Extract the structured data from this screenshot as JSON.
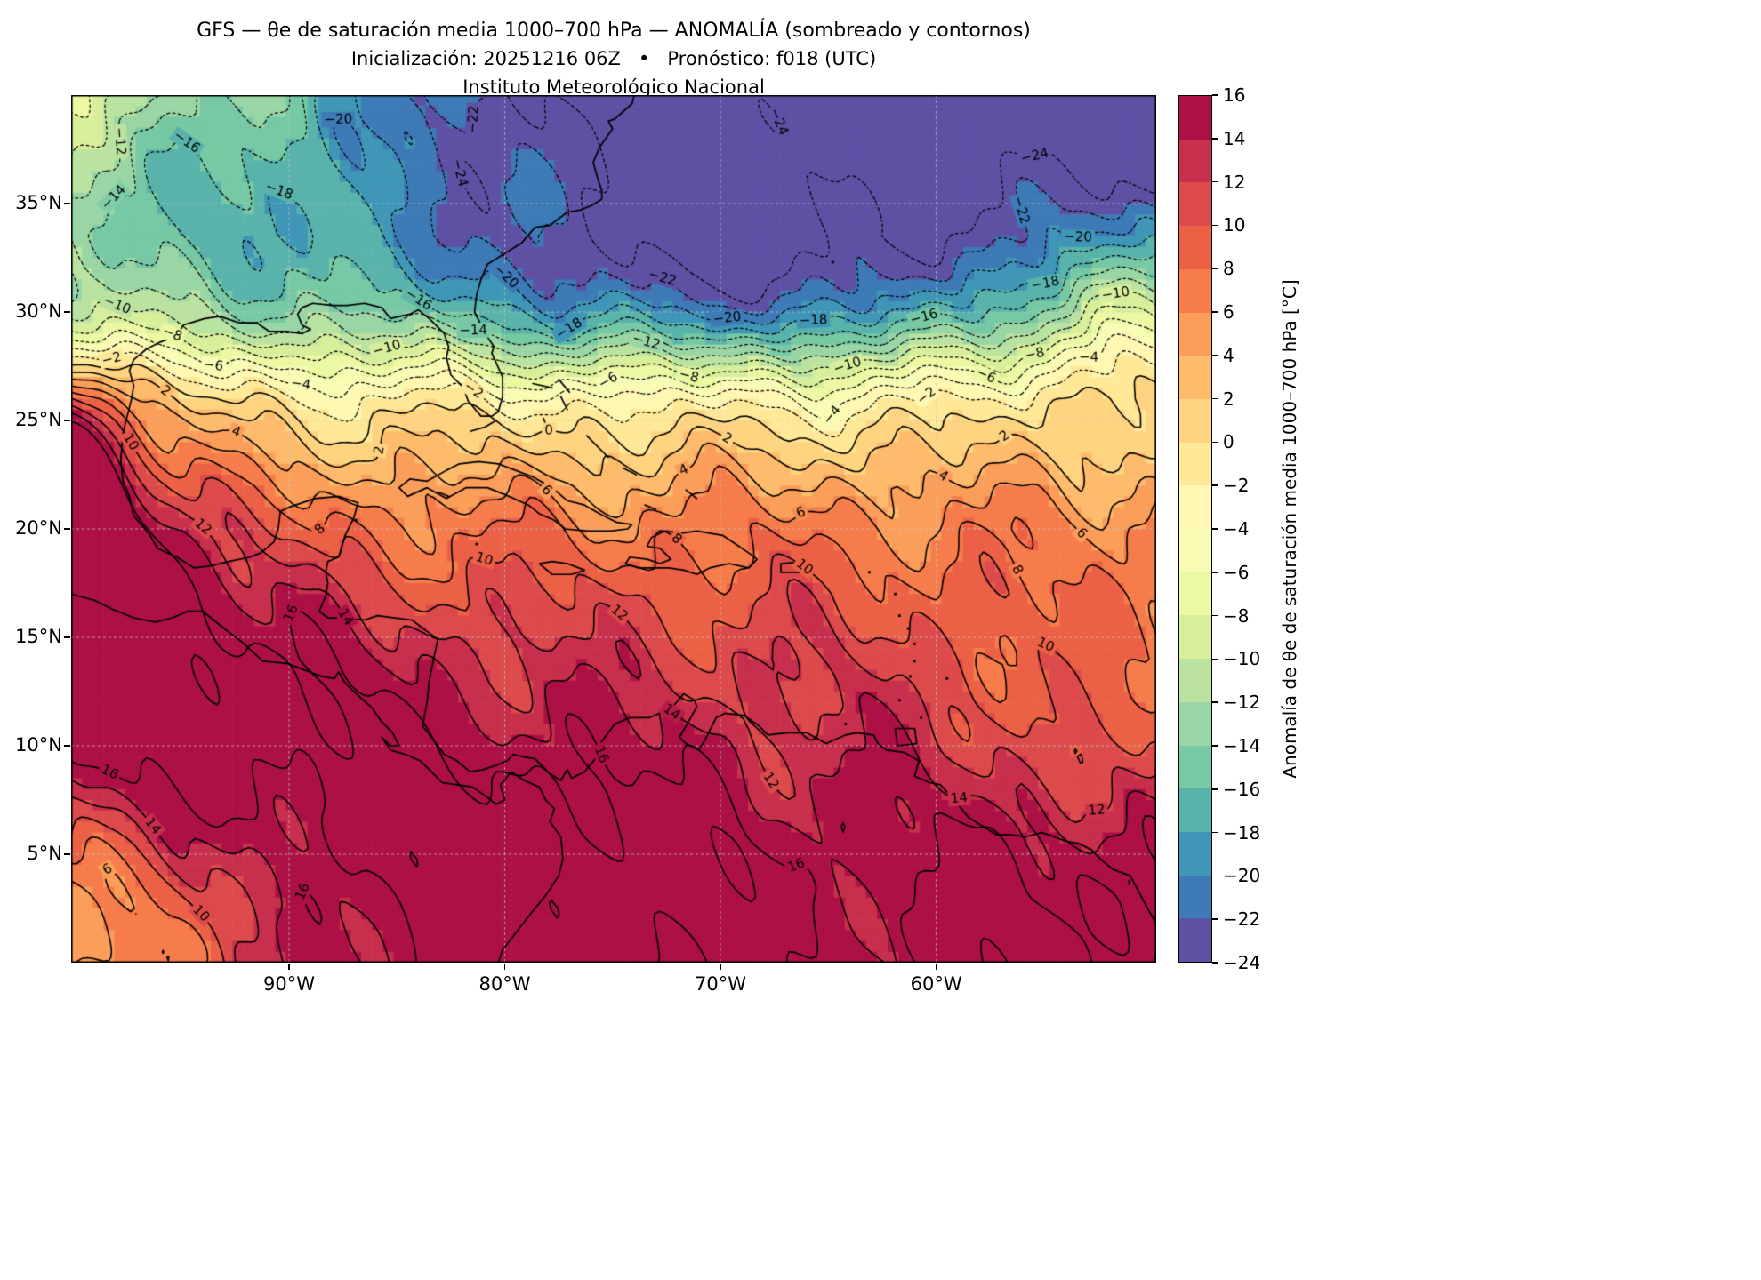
{
  "header": {
    "title": "GFS — θe de saturación media 1000–700 hPa — ANOMALÍA (sombreado y contornos)",
    "subtitle": "Inicialización: 20251216 06Z   •   Pronóstico: f018 (UTC)",
    "institution": "Instituto Meteorológico Nacional"
  },
  "axes": {
    "x_ticks": [
      {
        "lon": -90,
        "label": "90°W"
      },
      {
        "lon": -80,
        "label": "80°W"
      },
      {
        "lon": -70,
        "label": "70°W"
      },
      {
        "lon": -60,
        "label": "60°W"
      }
    ],
    "y_ticks": [
      {
        "lat": 35,
        "label": "35°N"
      },
      {
        "lat": 30,
        "label": "30°N"
      },
      {
        "lat": 25,
        "label": "25°N"
      },
      {
        "lat": 20,
        "label": "20°N"
      },
      {
        "lat": 15,
        "label": "15°N"
      },
      {
        "lat": 10,
        "label": "10°N"
      },
      {
        "lat": 5,
        "label": "5°N"
      }
    ]
  },
  "colorbar": {
    "label": "Anomalía de θe de saturación media 1000–700 hPa [°C]",
    "min": -24,
    "max": 16,
    "step": 2,
    "tick_values": [
      16,
      14,
      12,
      10,
      8,
      6,
      4,
      2,
      0,
      -2,
      -4,
      -6,
      -8,
      -10,
      -12,
      -14,
      -16,
      -18,
      -20,
      -22,
      -24
    ],
    "tick_labels": [
      "16",
      "14",
      "12",
      "10",
      "8",
      "6",
      "4",
      "2",
      "0",
      "−2",
      "−4",
      "−6",
      "−8",
      "−10",
      "−12",
      "−14",
      "−16",
      "−18",
      "−20",
      "−22",
      "−24"
    ],
    "colors": [
      "#5e50a3",
      "#3d7ab6",
      "#3f96b7",
      "#59b3ab",
      "#77c9a5",
      "#9ad6a5",
      "#bae3a1",
      "#d7ef9b",
      "#ecf8a2",
      "#f9fcb5",
      "#fff7b2",
      "#ffe898",
      "#fed480",
      "#febb6c",
      "#fb9e5a",
      "#f67d4b",
      "#ec6146",
      "#dd4a4c",
      "#c72f4c",
      "#ac1045"
    ]
  },
  "chart_data": {
    "type": "heatmap",
    "subtype": "filled-contour-map",
    "variable": "Anomalía de θe de saturación media 1000–700 hPa",
    "units": "°C",
    "model": "GFS",
    "init": "20251216 06Z",
    "forecast_hour": "f018 (UTC)",
    "domain": {
      "lon_min": -100.1,
      "lon_max": -49.8,
      "lat_min": 0,
      "lat_max": 40
    },
    "shading_levels": [
      -24,
      -22,
      -20,
      -18,
      -16,
      -14,
      -12,
      -10,
      -8,
      -6,
      -4,
      -2,
      0,
      2,
      4,
      6,
      8,
      10,
      12,
      14,
      16
    ],
    "contour_levels": [
      -24,
      -22,
      -20,
      -18,
      -16,
      -14,
      -12,
      -10,
      -8,
      -6,
      -4,
      -2,
      0,
      2,
      4,
      6,
      8,
      10,
      12,
      14,
      16
    ],
    "contour_interval": 2,
    "negative_contour_style": "dotted",
    "positive_contour_style": "solid",
    "colormap": "Spectral invertido (púrpura→azul→verde→amarillo→naranja→rojo oscuro)",
    "grid": "gridlines discontinuas en 90/80/70/60°W y 5–35°N",
    "pattern": {
      "north": "anomalías negativas que se profundizan hacia el NE; mínimo < −24 °C en la esquina NE del Atlántico",
      "northwest_corner": "−6 a −10 °C",
      "zero_line": "aprox. 24–26°N",
      "gulf_of_mexico": "−2 a −6 °C",
      "caribbean": "+4 a +12 °C",
      "south": "máximos > 16 °C sobre Panamá/Colombia, Pacífico al sur de México y costa oeste de México (15–22°N)",
      "southwest_corner": "mínimo relativo +4 a +8 °C",
      "southeast": "bolsa relativa +6 a +8 °C cerca de 51°W 12°N"
    }
  }
}
